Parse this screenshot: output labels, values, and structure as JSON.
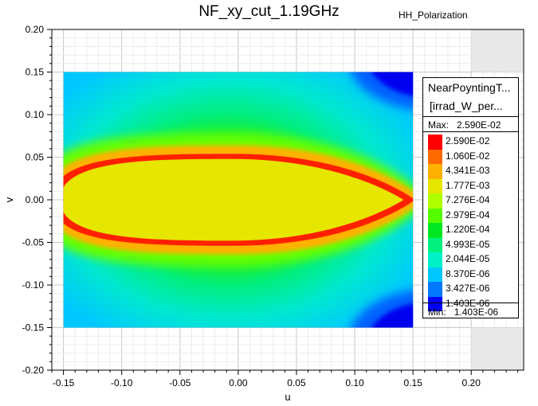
{
  "chart_data": {
    "type": "heatmap",
    "title": "NF_xy_cut_1.19GHz",
    "subtitle": "HH_Polarization",
    "xlabel": "u",
    "ylabel": "v",
    "xlim": [
      -0.16,
      0.245
    ],
    "ylim": [
      -0.2,
      0.2
    ],
    "x_ticks": [
      "-0.15",
      "-0.10",
      "-0.05",
      "0.00",
      "0.05",
      "0.10",
      "0.15",
      "0.20"
    ],
    "y_ticks": [
      "0.20",
      "0.15",
      "0.10",
      "0.05",
      "0.00",
      "-0.05",
      "-0.10",
      "-0.15",
      "-0.20"
    ],
    "x_tick_values": [
      -0.15,
      -0.1,
      -0.05,
      0.0,
      0.05,
      0.1,
      0.15,
      0.2
    ],
    "y_tick_values": [
      0.2,
      0.15,
      0.1,
      0.05,
      0.0,
      -0.05,
      -0.1,
      -0.15,
      -0.2
    ],
    "data_extent": {
      "u": [
        -0.15,
        0.15
      ],
      "v": [
        -0.15,
        0.15
      ]
    },
    "grid": true,
    "legend": {
      "title_line1": "NearPoyntingT...",
      "title_line2": "[irrad_W_per...",
      "max_label": "Max:",
      "max_value": "2.590E-02",
      "min_label": "Min:",
      "min_value": "1.403E-06",
      "placement": "right",
      "entries": [
        {
          "label": "2.590E-02",
          "color": "#ff0000"
        },
        {
          "label": "1.060E-02",
          "color": "#ff6a00"
        },
        {
          "label": "4.341E-03",
          "color": "#ffb000"
        },
        {
          "label": "1.777E-03",
          "color": "#e6e600"
        },
        {
          "label": "7.276E-04",
          "color": "#b0ff00"
        },
        {
          "label": "2.979E-04",
          "color": "#55ff00"
        },
        {
          "label": "1.220E-04",
          "color": "#00e620"
        },
        {
          "label": "4.993E-05",
          "color": "#00f080"
        },
        {
          "label": "2.044E-05",
          "color": "#00f0c8"
        },
        {
          "label": "8.370E-06",
          "color": "#00c8ff"
        },
        {
          "label": "3.427E-06",
          "color": "#0078ff"
        },
        {
          "label": "1.403E-06",
          "color": "#0000ff"
        }
      ]
    }
  }
}
